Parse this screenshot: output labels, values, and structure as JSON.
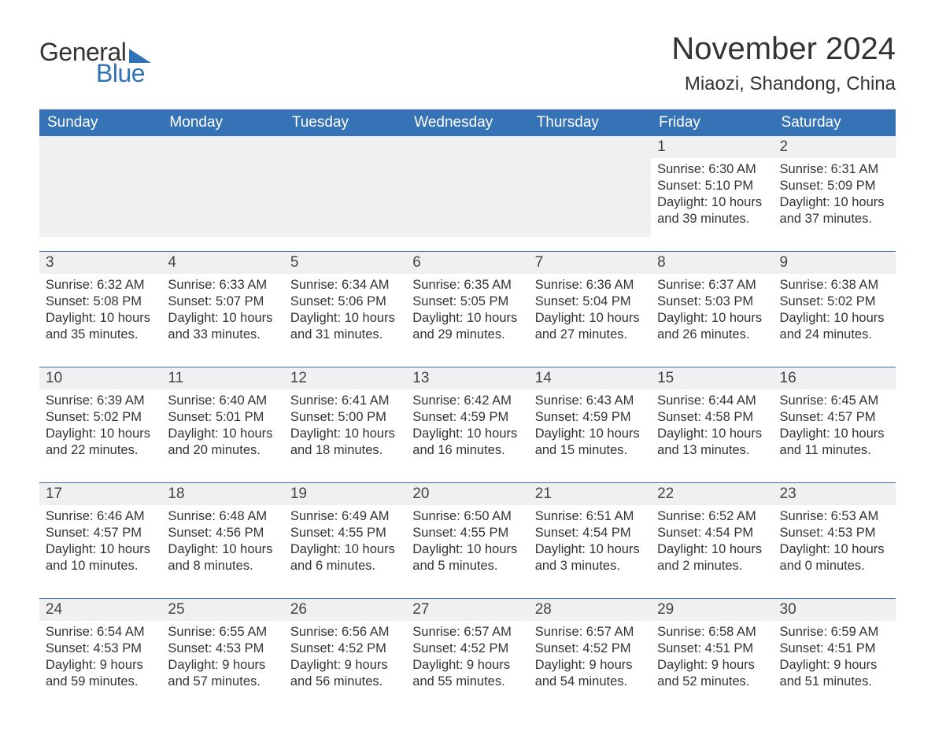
{
  "brand": {
    "general": "General",
    "blue": "Blue"
  },
  "colors": {
    "accent": "#3573b6",
    "header_text": "#ffffff",
    "daynum_bg": "#f0f0f0",
    "text": "#333333",
    "background": "#ffffff"
  },
  "title": "November 2024",
  "location": "Miaozi, Shandong, China",
  "days_of_week": [
    "Sunday",
    "Monday",
    "Tuesday",
    "Wednesday",
    "Thursday",
    "Friday",
    "Saturday"
  ],
  "labels": {
    "sunrise": "Sunrise:",
    "sunset": "Sunset:",
    "daylight": "Daylight:"
  },
  "weeks": [
    [
      null,
      null,
      null,
      null,
      null,
      {
        "n": "1",
        "sunrise": "6:30 AM",
        "sunset": "5:10 PM",
        "daylight": "10 hours and 39 minutes."
      },
      {
        "n": "2",
        "sunrise": "6:31 AM",
        "sunset": "5:09 PM",
        "daylight": "10 hours and 37 minutes."
      }
    ],
    [
      {
        "n": "3",
        "sunrise": "6:32 AM",
        "sunset": "5:08 PM",
        "daylight": "10 hours and 35 minutes."
      },
      {
        "n": "4",
        "sunrise": "6:33 AM",
        "sunset": "5:07 PM",
        "daylight": "10 hours and 33 minutes."
      },
      {
        "n": "5",
        "sunrise": "6:34 AM",
        "sunset": "5:06 PM",
        "daylight": "10 hours and 31 minutes."
      },
      {
        "n": "6",
        "sunrise": "6:35 AM",
        "sunset": "5:05 PM",
        "daylight": "10 hours and 29 minutes."
      },
      {
        "n": "7",
        "sunrise": "6:36 AM",
        "sunset": "5:04 PM",
        "daylight": "10 hours and 27 minutes."
      },
      {
        "n": "8",
        "sunrise": "6:37 AM",
        "sunset": "5:03 PM",
        "daylight": "10 hours and 26 minutes."
      },
      {
        "n": "9",
        "sunrise": "6:38 AM",
        "sunset": "5:02 PM",
        "daylight": "10 hours and 24 minutes."
      }
    ],
    [
      {
        "n": "10",
        "sunrise": "6:39 AM",
        "sunset": "5:02 PM",
        "daylight": "10 hours and 22 minutes."
      },
      {
        "n": "11",
        "sunrise": "6:40 AM",
        "sunset": "5:01 PM",
        "daylight": "10 hours and 20 minutes."
      },
      {
        "n": "12",
        "sunrise": "6:41 AM",
        "sunset": "5:00 PM",
        "daylight": "10 hours and 18 minutes."
      },
      {
        "n": "13",
        "sunrise": "6:42 AM",
        "sunset": "4:59 PM",
        "daylight": "10 hours and 16 minutes."
      },
      {
        "n": "14",
        "sunrise": "6:43 AM",
        "sunset": "4:59 PM",
        "daylight": "10 hours and 15 minutes."
      },
      {
        "n": "15",
        "sunrise": "6:44 AM",
        "sunset": "4:58 PM",
        "daylight": "10 hours and 13 minutes."
      },
      {
        "n": "16",
        "sunrise": "6:45 AM",
        "sunset": "4:57 PM",
        "daylight": "10 hours and 11 minutes."
      }
    ],
    [
      {
        "n": "17",
        "sunrise": "6:46 AM",
        "sunset": "4:57 PM",
        "daylight": "10 hours and 10 minutes."
      },
      {
        "n": "18",
        "sunrise": "6:48 AM",
        "sunset": "4:56 PM",
        "daylight": "10 hours and 8 minutes."
      },
      {
        "n": "19",
        "sunrise": "6:49 AM",
        "sunset": "4:55 PM",
        "daylight": "10 hours and 6 minutes."
      },
      {
        "n": "20",
        "sunrise": "6:50 AM",
        "sunset": "4:55 PM",
        "daylight": "10 hours and 5 minutes."
      },
      {
        "n": "21",
        "sunrise": "6:51 AM",
        "sunset": "4:54 PM",
        "daylight": "10 hours and 3 minutes."
      },
      {
        "n": "22",
        "sunrise": "6:52 AM",
        "sunset": "4:54 PM",
        "daylight": "10 hours and 2 minutes."
      },
      {
        "n": "23",
        "sunrise": "6:53 AM",
        "sunset": "4:53 PM",
        "daylight": "10 hours and 0 minutes."
      }
    ],
    [
      {
        "n": "24",
        "sunrise": "6:54 AM",
        "sunset": "4:53 PM",
        "daylight": "9 hours and 59 minutes."
      },
      {
        "n": "25",
        "sunrise": "6:55 AM",
        "sunset": "4:53 PM",
        "daylight": "9 hours and 57 minutes."
      },
      {
        "n": "26",
        "sunrise": "6:56 AM",
        "sunset": "4:52 PM",
        "daylight": "9 hours and 56 minutes."
      },
      {
        "n": "27",
        "sunrise": "6:57 AM",
        "sunset": "4:52 PM",
        "daylight": "9 hours and 55 minutes."
      },
      {
        "n": "28",
        "sunrise": "6:57 AM",
        "sunset": "4:52 PM",
        "daylight": "9 hours and 54 minutes."
      },
      {
        "n": "29",
        "sunrise": "6:58 AM",
        "sunset": "4:51 PM",
        "daylight": "9 hours and 52 minutes."
      },
      {
        "n": "30",
        "sunrise": "6:59 AM",
        "sunset": "4:51 PM",
        "daylight": "9 hours and 51 minutes."
      }
    ]
  ]
}
